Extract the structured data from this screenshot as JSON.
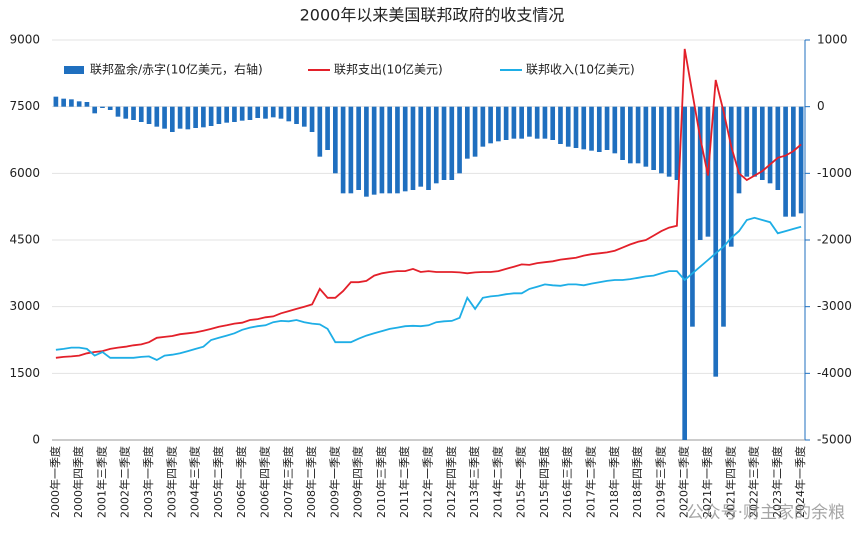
{
  "chart_data": {
    "type": "bar_line",
    "title": "2000年以来美国联邦政府的收支情况",
    "watermark": "公众号·财主家的余粮",
    "categories": [
      "2000年一季度",
      null,
      null,
      "2000年四季度",
      null,
      null,
      "2001年三季度",
      null,
      null,
      "2002年二季度",
      null,
      null,
      "2003年一季度",
      null,
      null,
      "2003年四季度",
      null,
      null,
      "2004年三季度",
      null,
      null,
      "2005年二季度",
      null,
      null,
      "2006年一季度",
      null,
      null,
      "2006年四季度",
      null,
      null,
      "2007年三季度",
      null,
      null,
      "2008年二季度",
      null,
      null,
      "2009年一季度",
      null,
      null,
      "2009年四季度",
      null,
      null,
      "2010年三季度",
      null,
      null,
      "2011年二季度",
      null,
      null,
      "2012年一季度",
      null,
      null,
      "2012年四季度",
      null,
      null,
      "2013年三季度",
      null,
      null,
      "2014年二季度",
      null,
      null,
      "2015年一季度",
      null,
      null,
      "2015年四季度",
      null,
      null,
      "2016年三季度",
      null,
      null,
      "2017年二季度",
      null,
      null,
      "2018年一季度",
      null,
      null,
      "2018年四季度",
      null,
      null,
      "2019年三季度",
      null,
      null,
      "2020年二季度",
      null,
      null,
      "2021年一季度",
      null,
      null,
      "2021年四季度",
      null,
      null,
      "2022年三季度",
      null,
      null,
      "2023年二季度",
      null,
      null,
      "2024年一季度"
    ],
    "series": [
      {
        "name": "联邦盈余/赤字(10亿美元，右轴)",
        "kind": "bar",
        "axis": "y2",
        "color": "#1f6fbf",
        "values": [
          150,
          120,
          110,
          80,
          70,
          -100,
          -20,
          -50,
          -150,
          -180,
          -200,
          -230,
          -260,
          -300,
          -330,
          -380,
          -330,
          -340,
          -320,
          -310,
          -290,
          -260,
          -240,
          -230,
          -210,
          -200,
          -170,
          -180,
          -160,
          -180,
          -220,
          -260,
          -300,
          -380,
          -750,
          -650,
          -1000,
          -1300,
          -1300,
          -1250,
          -1350,
          -1320,
          -1300,
          -1300,
          -1300,
          -1270,
          -1250,
          -1200,
          -1250,
          -1150,
          -1100,
          -1100,
          -1000,
          -780,
          -750,
          -600,
          -550,
          -520,
          -500,
          -480,
          -480,
          -450,
          -480,
          -480,
          -500,
          -560,
          -600,
          -620,
          -640,
          -660,
          -680,
          -650,
          -700,
          -800,
          -850,
          -850,
          -900,
          -950,
          -1000,
          -1050,
          -1100,
          -5000,
          -3300,
          -2000,
          -1950,
          -4050,
          -3300,
          -2100,
          -1300,
          -1050,
          -1050,
          -1100,
          -1150,
          -1250,
          -1650,
          -1650,
          -1600
        ]
      },
      {
        "name": "联邦支出(10亿美元)",
        "kind": "line",
        "color": "#e3202a",
        "values": [
          1850,
          1870,
          1880,
          1900,
          1950,
          1980,
          2000,
          2050,
          2080,
          2100,
          2130,
          2150,
          2200,
          2300,
          2320,
          2340,
          2380,
          2400,
          2420,
          2460,
          2500,
          2550,
          2580,
          2620,
          2640,
          2700,
          2720,
          2760,
          2780,
          2850,
          2900,
          2950,
          3000,
          3050,
          3400,
          3200,
          3200,
          3350,
          3550,
          3550,
          3580,
          3700,
          3750,
          3780,
          3800,
          3800,
          3850,
          3780,
          3800,
          3780,
          3780,
          3780,
          3770,
          3750,
          3770,
          3780,
          3780,
          3800,
          3850,
          3900,
          3950,
          3940,
          3980,
          4000,
          4020,
          4060,
          4080,
          4100,
          4150,
          4180,
          4200,
          4220,
          4260,
          4330,
          4400,
          4460,
          4500,
          4600,
          4700,
          4780,
          4820,
          8800,
          7800,
          6800,
          5950,
          8100,
          7400,
          6600,
          6000,
          5850,
          5950,
          6050,
          6200,
          6350,
          6400,
          6500,
          6650
        ]
      },
      {
        "name": "联邦收入(10亿美元)",
        "kind": "line",
        "color": "#1eaee6",
        "values": [
          2030,
          2050,
          2080,
          2080,
          2050,
          1900,
          1980,
          1850,
          1850,
          1850,
          1850,
          1870,
          1880,
          1800,
          1900,
          1920,
          1950,
          2000,
          2050,
          2100,
          2250,
          2300,
          2350,
          2400,
          2480,
          2530,
          2560,
          2580,
          2650,
          2680,
          2670,
          2700,
          2650,
          2620,
          2600,
          2500,
          2200,
          2200,
          2200,
          2280,
          2350,
          2400,
          2450,
          2500,
          2530,
          2560,
          2570,
          2560,
          2580,
          2650,
          2670,
          2680,
          2750,
          3200,
          2950,
          3200,
          3230,
          3250,
          3280,
          3300,
          3300,
          3400,
          3450,
          3500,
          3480,
          3470,
          3500,
          3500,
          3480,
          3520,
          3550,
          3580,
          3600,
          3600,
          3620,
          3650,
          3680,
          3700,
          3750,
          3800,
          3800,
          3600,
          3750,
          3900,
          4050,
          4200,
          4350,
          4550,
          4700,
          4950,
          5000,
          4950,
          4900,
          4650,
          4700,
          4750,
          4800
        ]
      }
    ],
    "ylim": [
      0,
      9000
    ],
    "yticks": [
      0,
      1500,
      3000,
      4500,
      6000,
      7500,
      9000
    ],
    "y2lim": [
      -5000,
      1000
    ],
    "y2ticks": [
      -5000,
      -4000,
      -3000,
      -2000,
      -1000,
      0,
      1000
    ],
    "grid": true,
    "legend": "top"
  }
}
